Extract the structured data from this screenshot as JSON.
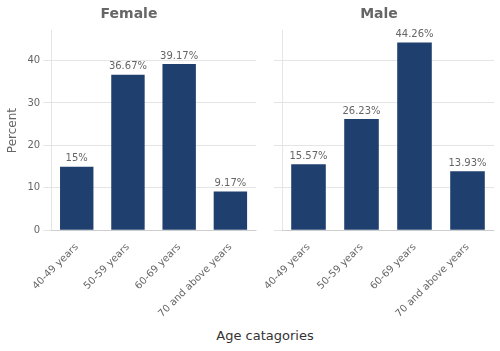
{
  "chart_data": [
    {
      "type": "bar",
      "title": "Female",
      "categories": [
        "40-49 years",
        "50-59 years",
        "60-69 years",
        "70 and above years"
      ],
      "values": [
        15.0,
        36.67,
        39.17,
        9.17
      ],
      "value_labels": [
        "15%",
        "36.67%",
        "39.17%",
        "9.17%"
      ],
      "data_labels": true,
      "color": "#1f3f6e",
      "xlabel": "Age catagories",
      "ylabel": "Percent",
      "ylim": [
        0,
        47
      ],
      "yticks": [
        0,
        10,
        20,
        30,
        40
      ],
      "grid": true
    },
    {
      "type": "bar",
      "title": "Male",
      "categories": [
        "40-49 years",
        "50-59 years",
        "60-69 years",
        "70 and above years"
      ],
      "values": [
        15.57,
        26.23,
        44.26,
        13.93
      ],
      "value_labels": [
        "15.57%",
        "26.23%",
        "44.26%",
        "13.93%"
      ],
      "data_labels": true,
      "color": "#1f3f6e",
      "ylim": [
        0,
        47
      ],
      "yticks": [
        0,
        10,
        20,
        30,
        40
      ],
      "grid": true,
      "tick_labels": "x"
    }
  ]
}
